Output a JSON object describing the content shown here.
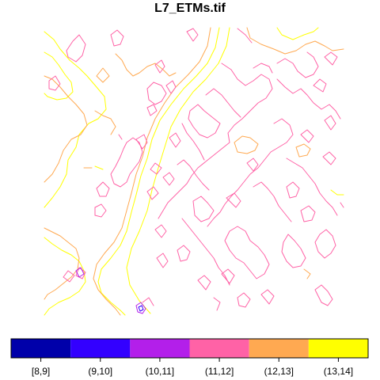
{
  "chart_data": {
    "type": "contour",
    "title": "L7_ETMs.tif",
    "xlabel": "",
    "ylabel": "",
    "grid": false,
    "legend_placement": "bottom",
    "levels": [
      {
        "label": "[8,9]",
        "color": "#0000AA"
      },
      {
        "label": "(9,10]",
        "color": "#3300FF"
      },
      {
        "label": "(10,11]",
        "color": "#B31FEA"
      },
      {
        "label": "(11,12]",
        "color": "#FF62A6"
      },
      {
        "label": "(12,13]",
        "color": "#FFA951"
      },
      {
        "label": "(13,14]",
        "color": "#FFFF00"
      }
    ],
    "note_levels_present": [
      "(9,10]",
      "(10,11]",
      "(11,12]",
      "(12,13]",
      "(13,14]"
    ]
  }
}
